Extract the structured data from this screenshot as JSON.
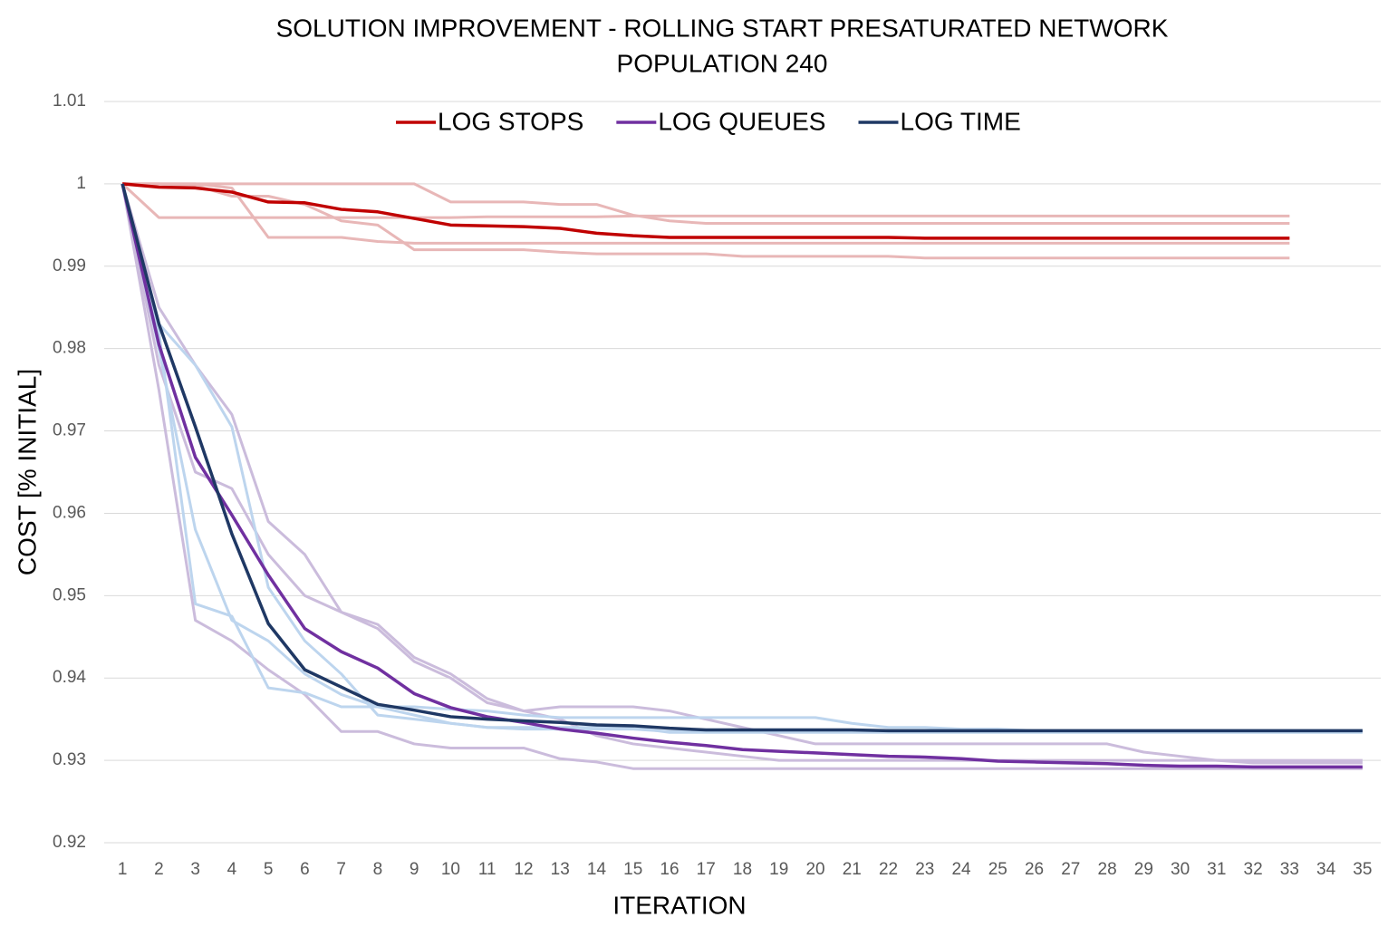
{
  "chart_data": {
    "type": "line",
    "title": "SOLUTION IMPROVEMENT - ROLLING START PRESATURATED NETWORK",
    "subtitle": "POPULATION 240",
    "x_label": "ITERATION",
    "y_label": "COST [% INITIAL]",
    "legend": "top",
    "grid": true,
    "categories": [
      "1",
      "2",
      "3",
      "4",
      "5",
      "6",
      "7",
      "8",
      "9",
      "10",
      "11",
      "12",
      "13",
      "14",
      "15",
      "16",
      "17",
      "18",
      "19",
      "20",
      "21",
      "22",
      "23",
      "24",
      "25",
      "26",
      "27",
      "28",
      "29",
      "30",
      "31",
      "32",
      "33",
      "34",
      "35"
    ],
    "ylim": [
      0.92,
      1.01
    ],
    "yticks": [
      0.92,
      0.93,
      0.94,
      0.95,
      0.96,
      0.97,
      0.98,
      0.99,
      1,
      1.01
    ],
    "series": [
      {
        "color": "#e8b7b7",
        "values": [
          1,
          0.9959,
          0.9959,
          0.9959,
          0.9959,
          0.9959,
          0.9959,
          0.9959,
          0.9959,
          0.9959,
          0.996,
          0.996,
          0.996,
          0.996,
          0.9961,
          0.9961,
          0.9961,
          0.9961,
          0.9961,
          0.9961,
          0.9961,
          0.9961,
          0.9961,
          0.9961,
          0.9961,
          0.9961,
          0.9961,
          0.9961,
          0.9961,
          0.9961,
          0.9961,
          0.9961,
          0.9961,
          null,
          null
        ]
      },
      {
        "color": "#e8b7b7",
        "values": [
          1,
          1,
          1,
          0.9995,
          0.9935,
          0.9935,
          0.9935,
          0.993,
          0.9928,
          0.9928,
          0.9928,
          0.9928,
          0.9928,
          0.9928,
          0.9928,
          0.9928,
          0.9928,
          0.9928,
          0.9928,
          0.9928,
          0.9928,
          0.9928,
          0.9928,
          0.9928,
          0.9928,
          0.9928,
          0.9928,
          0.9928,
          0.9928,
          0.9928,
          0.9928,
          0.9928,
          0.9928,
          null,
          null
        ]
      },
      {
        "color": "#e8b7b7",
        "values": [
          1,
          1,
          1,
          1,
          1,
          1,
          1,
          1,
          1,
          0.9978,
          0.9978,
          0.9978,
          0.9975,
          0.9975,
          0.9962,
          0.9955,
          0.9952,
          0.9952,
          0.9952,
          0.9952,
          0.9952,
          0.9952,
          0.9952,
          0.9952,
          0.9952,
          0.9952,
          0.9952,
          0.9952,
          0.9952,
          0.9952,
          0.9952,
          0.9952,
          0.9952,
          null,
          null
        ]
      },
      {
        "color": "#e8b7b7",
        "values": [
          1,
          1,
          0.9998,
          0.9985,
          0.9985,
          0.9975,
          0.9955,
          0.995,
          0.992,
          0.992,
          0.992,
          0.992,
          0.9917,
          0.9915,
          0.9915,
          0.9915,
          0.9915,
          0.9912,
          0.9912,
          0.9912,
          0.9912,
          0.9912,
          0.991,
          0.991,
          0.991,
          0.991,
          0.991,
          0.991,
          0.991,
          0.991,
          0.991,
          0.991,
          0.991,
          null,
          null
        ]
      },
      {
        "color": "#cbbcdc",
        "values": [
          1,
          0.978,
          0.965,
          0.963,
          0.955,
          0.95,
          0.948,
          0.946,
          0.942,
          0.94,
          0.937,
          0.936,
          0.9365,
          0.9365,
          0.9365,
          0.936,
          0.935,
          0.934,
          0.933,
          0.932,
          0.932,
          0.932,
          0.932,
          0.932,
          0.932,
          0.932,
          0.932,
          0.932,
          0.931,
          0.9305,
          0.93,
          0.9297,
          0.9297,
          0.9297,
          0.9297
        ]
      },
      {
        "color": "#cbbcdc",
        "values": [
          1,
          0.975,
          0.947,
          0.9445,
          0.941,
          0.938,
          0.9335,
          0.9335,
          0.932,
          0.9315,
          0.9315,
          0.9315,
          0.9302,
          0.9298,
          0.929,
          0.929,
          0.929,
          0.929,
          0.929,
          0.929,
          0.929,
          0.929,
          0.929,
          0.929,
          0.929,
          0.929,
          0.929,
          0.929,
          0.929,
          0.929,
          0.929,
          0.929,
          0.929,
          0.929,
          0.929
        ]
      },
      {
        "color": "#cbbcdc",
        "values": [
          1,
          0.985,
          0.978,
          0.972,
          0.959,
          0.955,
          0.948,
          0.9465,
          0.9425,
          0.9405,
          0.9375,
          0.936,
          0.935,
          0.933,
          0.932,
          0.9315,
          0.931,
          0.9305,
          0.93,
          0.93,
          0.93,
          0.93,
          0.93,
          0.93,
          0.93,
          0.93,
          0.93,
          0.93,
          0.93,
          0.93,
          0.93,
          0.93,
          0.93,
          0.93,
          0.93
        ]
      },
      {
        "color": "#bdd5ee",
        "values": [
          1,
          0.982,
          0.949,
          0.9475,
          0.9388,
          0.9382,
          0.9365,
          0.9365,
          0.9365,
          0.9362,
          0.936,
          0.9355,
          0.9352,
          0.9352,
          0.9352,
          0.9352,
          0.9352,
          0.9352,
          0.9352,
          0.9352,
          0.9345,
          0.934,
          0.934,
          0.9338,
          0.9338,
          0.9336,
          0.9336,
          0.9336,
          0.9336,
          0.9336,
          0.9336,
          0.9336,
          0.9336,
          0.9336,
          0.9336
        ]
      },
      {
        "color": "#bdd5ee",
        "values": [
          1,
          0.983,
          0.978,
          0.9705,
          0.951,
          0.9445,
          0.9405,
          0.9355,
          0.935,
          0.9345,
          0.934,
          0.934,
          0.934,
          0.934,
          0.934,
          0.9334,
          0.9334,
          0.9334,
          0.9334,
          0.9334,
          0.9334,
          0.9334,
          0.9334,
          0.9334,
          0.9334,
          0.9334,
          0.9334,
          0.9334,
          0.9334,
          0.9334,
          0.9334,
          0.9334,
          0.9334,
          0.9334,
          0.9334
        ]
      },
      {
        "color": "#bdd5ee",
        "values": [
          1,
          0.98,
          0.958,
          0.947,
          0.9445,
          0.9405,
          0.938,
          0.9365,
          0.9355,
          0.9345,
          0.934,
          0.9338,
          0.9338,
          0.9338,
          0.9338,
          0.9335,
          0.9335,
          0.9335,
          0.9335,
          0.9335,
          0.9335,
          0.9335,
          0.9335,
          0.9335,
          0.9335,
          0.9335,
          0.9335,
          0.9335,
          0.9335,
          0.9335,
          0.9335,
          0.9335,
          0.9335,
          0.9335,
          0.9335
        ]
      },
      {
        "name": "LOG STOPS",
        "color": "#c00000",
        "values": [
          1,
          0.9996,
          0.9995,
          0.999,
          0.9978,
          0.9977,
          0.9969,
          0.9966,
          0.9958,
          0.995,
          0.9949,
          0.9948,
          0.9946,
          0.994,
          0.9937,
          0.9935,
          0.9935,
          0.9935,
          0.9935,
          0.9935,
          0.9935,
          0.9935,
          0.9934,
          0.9934,
          0.9934,
          0.9934,
          0.9934,
          0.9934,
          0.9934,
          0.9934,
          0.9934,
          0.9934,
          0.9934,
          null,
          null
        ]
      },
      {
        "name": "LOG QUEUES",
        "color": "#7030a0",
        "values": [
          1,
          0.9805,
          0.9668,
          0.9598,
          0.9525,
          0.946,
          0.9432,
          0.9412,
          0.9381,
          0.9364,
          0.9353,
          0.9346,
          0.9338,
          0.9333,
          0.9327,
          0.9322,
          0.9318,
          0.9313,
          0.9311,
          0.9309,
          0.9307,
          0.9305,
          0.9304,
          0.9302,
          0.9299,
          0.9298,
          0.9297,
          0.9296,
          0.9294,
          0.9293,
          0.9293,
          0.9292,
          0.9292,
          0.9292,
          0.9292
        ]
      },
      {
        "name": "LOG TIME",
        "color": "#1f3864",
        "values": [
          1,
          0.983,
          0.9705,
          0.9575,
          0.9466,
          0.941,
          0.9389,
          0.9368,
          0.9361,
          0.9353,
          0.935,
          0.9348,
          0.9346,
          0.9343,
          0.9342,
          0.9339,
          0.9337,
          0.9337,
          0.9337,
          0.9337,
          0.9337,
          0.9336,
          0.9336,
          0.9336,
          0.9336,
          0.9336,
          0.9336,
          0.9336,
          0.9336,
          0.9336,
          0.9336,
          0.9336,
          0.9336,
          0.9336,
          0.9336
        ]
      }
    ]
  }
}
